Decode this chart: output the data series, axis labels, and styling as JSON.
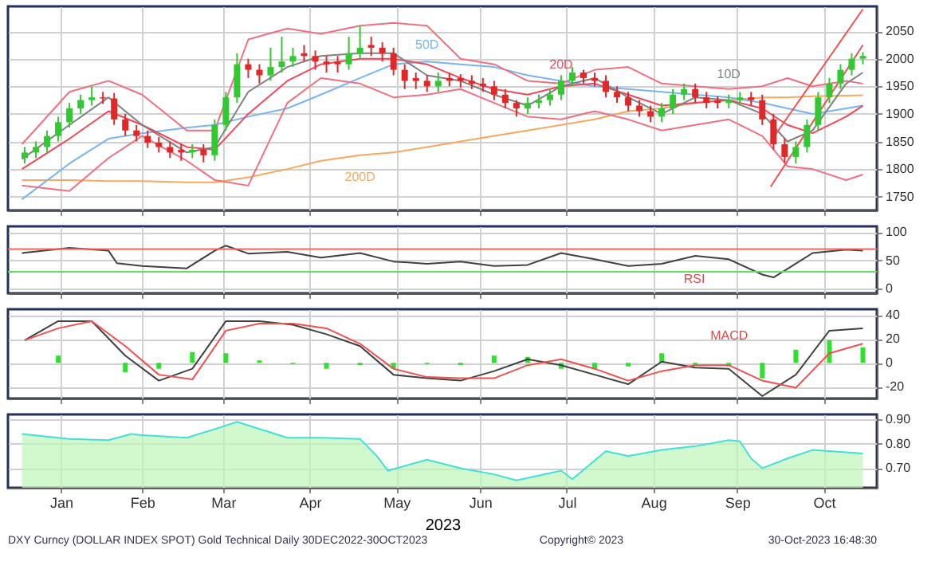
{
  "chart_data": [
    {
      "type": "candlestick",
      "grid": true,
      "tick_labels": "y",
      "xlim": [
        "2022-12-28",
        "2023-11-04"
      ],
      "ylim": [
        1725,
        2095
      ],
      "yticks": [
        1750,
        1800,
        1850,
        1900,
        1950,
        2000,
        2050
      ],
      "xticks": [
        {
          "value": "2023-01-16",
          "label": null
        },
        {
          "value": "2023-02-14",
          "label": null
        },
        {
          "value": "2023-03-15",
          "label": null
        },
        {
          "value": "2023-04-15",
          "label": null
        },
        {
          "value": "2023-05-16",
          "label": null
        },
        {
          "value": "2023-06-15",
          "label": null
        },
        {
          "value": "2023-07-16",
          "label": null
        },
        {
          "value": "2023-08-16",
          "label": null
        },
        {
          "value": "2023-09-15",
          "label": null
        },
        {
          "value": "2023-10-16",
          "label": null
        }
      ],
      "x": [
        "2023-01-03",
        "2023-01-07",
        "2023-01-11",
        "2023-01-15",
        "2023-01-19",
        "2023-01-23",
        "2023-01-27",
        "2023-01-31",
        "2023-02-04",
        "2023-02-08",
        "2023-02-12",
        "2023-02-16",
        "2023-02-20",
        "2023-02-24",
        "2023-02-28",
        "2023-03-04",
        "2023-03-08",
        "2023-03-12",
        "2023-03-16",
        "2023-03-20",
        "2023-03-24",
        "2023-03-28",
        "2023-04-01",
        "2023-04-05",
        "2023-04-09",
        "2023-04-13",
        "2023-04-17",
        "2023-04-21",
        "2023-04-25",
        "2023-04-29",
        "2023-05-03",
        "2023-05-07",
        "2023-05-11",
        "2023-05-15",
        "2023-05-19",
        "2023-05-23",
        "2023-05-27",
        "2023-05-31",
        "2023-06-04",
        "2023-06-08",
        "2023-06-12",
        "2023-06-16",
        "2023-06-20",
        "2023-06-24",
        "2023-06-28",
        "2023-07-02",
        "2023-07-06",
        "2023-07-10",
        "2023-07-14",
        "2023-07-18",
        "2023-07-22",
        "2023-07-26",
        "2023-07-30",
        "2023-08-03",
        "2023-08-07",
        "2023-08-11",
        "2023-08-15",
        "2023-08-19",
        "2023-08-23",
        "2023-08-27",
        "2023-08-31",
        "2023-09-04",
        "2023-09-08",
        "2023-09-12",
        "2023-09-16",
        "2023-09-20",
        "2023-09-24",
        "2023-09-28",
        "2023-10-02",
        "2023-10-06",
        "2023-10-10",
        "2023-10-14",
        "2023-10-18",
        "2023-10-22",
        "2023-10-26",
        "2023-10-30"
      ],
      "ohlc": [
        [
          1820,
          1840,
          1810,
          1830
        ],
        [
          1830,
          1850,
          1820,
          1840
        ],
        [
          1840,
          1870,
          1830,
          1860
        ],
        [
          1860,
          1895,
          1850,
          1885
        ],
        [
          1885,
          1920,
          1875,
          1910
        ],
        [
          1910,
          1935,
          1900,
          1925
        ],
        [
          1925,
          1950,
          1915,
          1930
        ],
        [
          1930,
          1940,
          1918,
          1928
        ],
        [
          1928,
          1938,
          1880,
          1890
        ],
        [
          1890,
          1900,
          1860,
          1870
        ],
        [
          1870,
          1880,
          1850,
          1860
        ],
        [
          1860,
          1870,
          1838,
          1848
        ],
        [
          1848,
          1858,
          1830,
          1840
        ],
        [
          1840,
          1850,
          1820,
          1830
        ],
        [
          1835,
          1845,
          1815,
          1830
        ],
        [
          1830,
          1845,
          1820,
          1835
        ],
        [
          1835,
          1845,
          1812,
          1825
        ],
        [
          1825,
          1890,
          1815,
          1880
        ],
        [
          1880,
          1940,
          1870,
          1930
        ],
        [
          1930,
          2010,
          1920,
          1990
        ],
        [
          1990,
          2000,
          1965,
          1980
        ],
        [
          1980,
          1990,
          1955,
          1970
        ],
        [
          1970,
          2020,
          1960,
          1985
        ],
        [
          1985,
          2040,
          1975,
          1995
        ],
        [
          1995,
          2020,
          1985,
          2005
        ],
        [
          2010,
          2025,
          1995,
          2005
        ],
        [
          2005,
          2015,
          1980,
          1995
        ],
        [
          1995,
          2005,
          1975,
          1990
        ],
        [
          1995,
          2005,
          1975,
          1990
        ],
        [
          1990,
          2040,
          1980,
          2010
        ],
        [
          2010,
          2060,
          2000,
          2020
        ],
        [
          2025,
          2040,
          2005,
          2020
        ],
        [
          2020,
          2030,
          1995,
          2010
        ],
        [
          2010,
          2020,
          1970,
          1980
        ],
        [
          1980,
          1990,
          1945,
          1960
        ],
        [
          1965,
          1975,
          1945,
          1960
        ],
        [
          1960,
          1970,
          1940,
          1950
        ],
        [
          1950,
          1975,
          1940,
          1960
        ],
        [
          1965,
          1975,
          1950,
          1960
        ],
        [
          1965,
          1972,
          1948,
          1960
        ],
        [
          1960,
          1970,
          1945,
          1955
        ],
        [
          1955,
          1965,
          1940,
          1950
        ],
        [
          1950,
          1960,
          1925,
          1935
        ],
        [
          1935,
          1945,
          1910,
          1920
        ],
        [
          1920,
          1925,
          1895,
          1910
        ],
        [
          1910,
          1930,
          1900,
          1920
        ],
        [
          1920,
          1935,
          1910,
          1925
        ],
        [
          1925,
          1945,
          1915,
          1935
        ],
        [
          1935,
          1970,
          1925,
          1960
        ],
        [
          1960,
          1985,
          1950,
          1975
        ],
        [
          1975,
          1980,
          1955,
          1965
        ],
        [
          1965,
          1975,
          1950,
          1960
        ],
        [
          1960,
          1970,
          1930,
          1940
        ],
        [
          1940,
          1950,
          1920,
          1930
        ],
        [
          1930,
          1940,
          1905,
          1915
        ],
        [
          1915,
          1925,
          1895,
          1905
        ],
        [
          1905,
          1915,
          1885,
          1895
        ],
        [
          1895,
          1920,
          1885,
          1910
        ],
        [
          1910,
          1945,
          1900,
          1935
        ],
        [
          1935,
          1955,
          1925,
          1945
        ],
        [
          1945,
          1955,
          1920,
          1930
        ],
        [
          1930,
          1940,
          1910,
          1920
        ],
        [
          1925,
          1932,
          1910,
          1920
        ],
        [
          1920,
          1935,
          1910,
          1925
        ],
        [
          1925,
          1940,
          1915,
          1930
        ],
        [
          1930,
          1940,
          1915,
          1925
        ],
        [
          1925,
          1935,
          1880,
          1890
        ],
        [
          1890,
          1900,
          1835,
          1845
        ],
        [
          1845,
          1855,
          1812,
          1822
        ],
        [
          1822,
          1850,
          1810,
          1840
        ],
        [
          1840,
          1890,
          1830,
          1880
        ],
        [
          1880,
          1940,
          1870,
          1930
        ],
        [
          1930,
          1965,
          1920,
          1955
        ],
        [
          1955,
          1990,
          1945,
          1980
        ],
        [
          1980,
          2010,
          1970,
          2000
        ],
        [
          2000,
          2012,
          1990,
          2005
        ]
      ],
      "series": [
        {
          "type": "line",
          "name": "200D",
          "color": "#f5a860",
          "x": [
            "2023-01-02",
            "2023-01-19",
            "2023-02-02",
            "2023-02-14",
            "2023-03-02",
            "2023-03-12",
            "2023-03-24",
            "2023-04-07",
            "2023-04-19",
            "2023-05-03",
            "2023-05-15",
            "2023-05-27",
            "2023-06-08",
            "2023-06-20",
            "2023-07-02",
            "2023-07-14",
            "2023-07-26",
            "2023-08-07",
            "2023-08-19",
            "2023-08-31",
            "2023-09-12",
            "2023-09-24",
            "2023-10-03",
            "2023-10-12",
            "2023-10-24",
            "2023-10-30"
          ],
          "values": [
            1780,
            1780,
            1778,
            1778,
            1776,
            1776,
            1785,
            1800,
            1815,
            1825,
            1830,
            1840,
            1850,
            1860,
            1870,
            1880,
            1890,
            1905,
            1910,
            1920,
            1925,
            1930,
            1930,
            1932,
            1933,
            1934
          ]
        },
        {
          "type": "line",
          "name": "50D",
          "color": "#78b4f0",
          "x": [
            "2023-01-02",
            "2023-01-19",
            "2023-02-02",
            "2023-02-14",
            "2023-03-02",
            "2023-03-12",
            "2023-03-24",
            "2023-04-07",
            "2023-04-19",
            "2023-05-03",
            "2023-05-15",
            "2023-05-27",
            "2023-06-08",
            "2023-06-20",
            "2023-07-02",
            "2023-07-14",
            "2023-07-26",
            "2023-08-07",
            "2023-08-19",
            "2023-08-31",
            "2023-09-12",
            "2023-09-24",
            "2023-10-03",
            "2023-10-12",
            "2023-10-24",
            "2023-10-30"
          ],
          "values": [
            1745,
            1810,
            1855,
            1865,
            1875,
            1880,
            1895,
            1910,
            1935,
            1965,
            1990,
            1995,
            1990,
            1985,
            1970,
            1960,
            1950,
            1945,
            1940,
            1935,
            1930,
            1920,
            1910,
            1900,
            1910,
            1915
          ]
        },
        {
          "type": "line",
          "color": "#f07080",
          "x": [
            "2023-01-02",
            "2023-01-19",
            "2023-02-02",
            "2023-02-14",
            "2023-03-02",
            "2023-03-12",
            "2023-03-24",
            "2023-04-07",
            "2023-04-19",
            "2023-05-03",
            "2023-05-15",
            "2023-05-27",
            "2023-06-08",
            "2023-06-20",
            "2023-07-02",
            "2023-07-14",
            "2023-07-26",
            "2023-08-07",
            "2023-08-19",
            "2023-08-31",
            "2023-09-12",
            "2023-09-24",
            "2023-10-03",
            "2023-10-12",
            "2023-10-24",
            "2023-10-30"
          ],
          "values": [
            1845,
            1940,
            1960,
            1935,
            1870,
            1870,
            2035,
            2055,
            2045,
            2060,
            2065,
            2060,
            2000,
            1990,
            1960,
            1955,
            1980,
            1985,
            1955,
            1950,
            1945,
            1950,
            1965,
            1950,
            1960,
            1955
          ]
        },
        {
          "type": "line",
          "color": "#f07080",
          "x": [
            "2023-01-02",
            "2023-01-19",
            "2023-02-02",
            "2023-02-14",
            "2023-03-02",
            "2023-03-12",
            "2023-03-24",
            "2023-04-07",
            "2023-04-19",
            "2023-05-03",
            "2023-05-15",
            "2023-05-27",
            "2023-06-08",
            "2023-06-20",
            "2023-07-02",
            "2023-07-14",
            "2023-07-26",
            "2023-08-07",
            "2023-08-19",
            "2023-08-31",
            "2023-09-12",
            "2023-09-24",
            "2023-10-03",
            "2023-10-12",
            "2023-10-24",
            "2023-10-30"
          ],
          "values": [
            1770,
            1760,
            1820,
            1860,
            1815,
            1780,
            1770,
            1920,
            1965,
            1955,
            1930,
            1935,
            1945,
            1920,
            1895,
            1890,
            1905,
            1890,
            1870,
            1880,
            1890,
            1860,
            1805,
            1800,
            1780,
            1790
          ]
        },
        {
          "type": "line",
          "name": "20D",
          "color": "#f04858",
          "x": [
            "2023-01-02",
            "2023-01-19",
            "2023-02-02",
            "2023-02-14",
            "2023-03-02",
            "2023-03-12",
            "2023-03-24",
            "2023-04-07",
            "2023-04-19",
            "2023-05-03",
            "2023-05-15",
            "2023-05-27",
            "2023-06-08",
            "2023-06-20",
            "2023-07-02",
            "2023-07-14",
            "2023-07-26",
            "2023-08-07",
            "2023-08-19",
            "2023-08-31",
            "2023-09-12",
            "2023-09-24",
            "2023-10-03",
            "2023-10-12",
            "2023-10-24",
            "2023-10-30"
          ],
          "values": [
            1800,
            1855,
            1905,
            1880,
            1840,
            1835,
            1900,
            1960,
            1990,
            2000,
            2000,
            1990,
            1965,
            1945,
            1935,
            1950,
            1955,
            1935,
            1915,
            1920,
            1925,
            1910,
            1880,
            1865,
            1895,
            1915
          ]
        },
        {
          "type": "line",
          "name": "10D",
          "color": "#808080",
          "x": [
            "2023-01-02",
            "2023-01-19",
            "2023-02-02",
            "2023-02-14",
            "2023-03-02",
            "2023-03-12",
            "2023-03-24",
            "2023-04-07",
            "2023-04-19",
            "2023-05-03",
            "2023-05-15",
            "2023-05-27",
            "2023-06-08",
            "2023-06-20",
            "2023-07-02",
            "2023-07-14",
            "2023-07-26",
            "2023-08-07",
            "2023-08-19",
            "2023-08-31",
            "2023-09-12",
            "2023-09-24",
            "2023-10-03",
            "2023-10-12",
            "2023-10-24",
            "2023-10-30"
          ],
          "values": [
            1818,
            1880,
            1930,
            1880,
            1830,
            1840,
            1940,
            1985,
            2005,
            2010,
            2010,
            1970,
            1960,
            1935,
            1915,
            1950,
            1965,
            1930,
            1900,
            1930,
            1925,
            1900,
            1850,
            1870,
            1955,
            1975
          ]
        },
        {
          "type": "line",
          "color": "#f05050",
          "x": [
            "2023-09-27",
            "2023-10-30"
          ],
          "values": [
            1850,
            2090
          ]
        },
        {
          "type": "line",
          "color": "#f05050",
          "x": [
            "2023-09-27",
            "2023-10-30"
          ],
          "values": [
            1768,
            2025
          ]
        }
      ],
      "line_style": "solid"
    },
    {
      "type": "line",
      "grid": true,
      "tick_labels": "y",
      "xlim": [
        "2022-12-28",
        "2023-11-04"
      ],
      "ylim": [
        -8,
        110
      ],
      "yticks": [
        0,
        50,
        100
      ],
      "xticks": [
        {
          "value": "2023-01-16",
          "label": null
        },
        {
          "value": "2023-02-14",
          "label": null
        },
        {
          "value": "2023-03-15",
          "label": null
        },
        {
          "value": "2023-04-15",
          "label": null
        },
        {
          "value": "2023-05-16",
          "label": null
        },
        {
          "value": "2023-06-15",
          "label": null
        },
        {
          "value": "2023-07-16",
          "label": null
        },
        {
          "value": "2023-08-16",
          "label": null
        },
        {
          "value": "2023-09-15",
          "label": null
        },
        {
          "value": "2023-10-16",
          "label": null
        }
      ],
      "x": [
        "2023-01-02",
        "2023-01-19",
        "2023-02-02",
        "2023-02-05",
        "2023-02-14",
        "2023-03-02",
        "2023-03-12",
        "2023-03-16",
        "2023-03-24",
        "2023-04-07",
        "2023-04-19",
        "2023-05-03",
        "2023-05-15",
        "2023-05-27",
        "2023-06-08",
        "2023-06-20",
        "2023-07-02",
        "2023-07-14",
        "2023-07-26",
        "2023-08-07",
        "2023-08-19",
        "2023-08-31",
        "2023-09-12",
        "2023-09-24",
        "2023-09-28",
        "2023-10-03",
        "2023-10-12",
        "2023-10-24",
        "2023-10-30"
      ],
      "series": [
        {
          "color": "#404040",
          "values": [
            63,
            72,
            67,
            45,
            40,
            36,
            67,
            76,
            62,
            65,
            55,
            63,
            48,
            44,
            48,
            40,
            42,
            63,
            52,
            40,
            44,
            58,
            52,
            25,
            20,
            35,
            63,
            69,
            67
          ]
        }
      ],
      "ref_lines": [
        {
          "axis": "y",
          "value": 70,
          "color": "#ff6060"
        },
        {
          "axis": "y",
          "value": 30,
          "color": "#60e060"
        }
      ],
      "annotations": [
        "RSI"
      ]
    },
    {
      "type": "line",
      "grid": true,
      "tick_labels": "y",
      "xlim": [
        "2022-12-28",
        "2023-11-04"
      ],
      "ylim": [
        -30,
        45
      ],
      "yticks": [
        -20,
        0,
        20,
        40
      ],
      "xticks": [
        {
          "value": "2023-01-16",
          "label": null
        },
        {
          "value": "2023-02-14",
          "label": null
        },
        {
          "value": "2023-03-15",
          "label": null
        },
        {
          "value": "2023-04-15",
          "label": null
        },
        {
          "value": "2023-05-16",
          "label": null
        },
        {
          "value": "2023-06-15",
          "label": null
        },
        {
          "value": "2023-07-16",
          "label": null
        },
        {
          "value": "2023-08-16",
          "label": null
        },
        {
          "value": "2023-09-15",
          "label": null
        },
        {
          "value": "2023-10-16",
          "label": null
        }
      ],
      "x": [
        "2023-01-03",
        "2023-01-15",
        "2023-01-27",
        "2023-02-08",
        "2023-02-20",
        "2023-03-04",
        "2023-03-16",
        "2023-03-28",
        "2023-04-09",
        "2023-04-21",
        "2023-05-03",
        "2023-05-15",
        "2023-05-27",
        "2023-06-08",
        "2023-06-20",
        "2023-07-02",
        "2023-07-14",
        "2023-07-26",
        "2023-08-07",
        "2023-08-19",
        "2023-08-31",
        "2023-09-12",
        "2023-09-24",
        "2023-10-06",
        "2023-10-18",
        "2023-10-30"
      ],
      "series": [
        {
          "type": "bar",
          "color": "#30e030",
          "values": [
            0,
            6,
            0,
            -8,
            -5,
            9,
            8,
            2,
            -1,
            -5,
            -2,
            -5,
            -1,
            -2,
            6,
            5,
            -5,
            -5,
            -3,
            8,
            -2,
            -3,
            -13,
            11,
            19,
            13
          ]
        },
        {
          "type": "line",
          "color": "#404040",
          "values": [
            19,
            35,
            35,
            6,
            -15,
            -5,
            35,
            35,
            32,
            24,
            14,
            -10,
            -13,
            -15,
            -7,
            3,
            -2,
            -10,
            -18,
            1,
            -4,
            -5,
            -28,
            -10,
            27,
            29
          ]
        },
        {
          "type": "line",
          "color": "#f05050",
          "values": [
            19,
            29,
            35,
            14,
            -10,
            -14,
            27,
            33,
            33,
            29,
            16,
            -5,
            -12,
            -13,
            -13,
            -2,
            3,
            -5,
            -15,
            -7,
            -2,
            -2,
            -15,
            -21,
            8,
            16
          ]
        }
      ],
      "annotations": [
        "MACD"
      ]
    },
    {
      "type": "area",
      "grid": true,
      "xlim": [
        "2022-12-28",
        "2023-11-04"
      ],
      "ylim": [
        0.62,
        0.92
      ],
      "yticks": [
        {
          "value": 0.7,
          "label": "0.70"
        },
        {
          "value": 0.8,
          "label": "0.80"
        },
        {
          "value": 0.9,
          "label": "0.90"
        }
      ],
      "xlabel": "2023",
      "xticks": [
        {
          "value": "2023-01-16",
          "label": "Jan"
        },
        {
          "value": "2023-02-14",
          "label": "Feb"
        },
        {
          "value": "2023-03-15",
          "label": "Mar"
        },
        {
          "value": "2023-04-15",
          "label": "Apr"
        },
        {
          "value": "2023-05-16",
          "label": "May"
        },
        {
          "value": "2023-06-15",
          "label": "Jun"
        },
        {
          "value": "2023-07-16",
          "label": "Jul"
        },
        {
          "value": "2023-08-16",
          "label": "Aug"
        },
        {
          "value": "2023-09-15",
          "label": "Sep"
        },
        {
          "value": "2023-10-16",
          "label": "Oct"
        }
      ],
      "x": [
        "2023-01-02",
        "2023-01-19",
        "2023-02-02",
        "2023-02-10",
        "2023-02-14",
        "2023-03-02",
        "2023-03-12",
        "2023-03-20",
        "2023-03-24",
        "2023-04-07",
        "2023-04-19",
        "2023-05-03",
        "2023-05-09",
        "2023-05-13",
        "2023-05-27",
        "2023-06-08",
        "2023-06-20",
        "2023-06-28",
        "2023-07-14",
        "2023-07-18",
        "2023-07-30",
        "2023-08-07",
        "2023-08-19",
        "2023-08-31",
        "2023-09-12",
        "2023-09-16",
        "2023-09-20",
        "2023-09-24",
        "2023-10-03",
        "2023-10-12",
        "2023-10-24",
        "2023-10-30"
      ],
      "series": [
        {
          "color": "#bdf7b8",
          "values": [
            0.84,
            0.82,
            0.815,
            0.84,
            0.835,
            0.825,
            0.86,
            0.89,
            0.875,
            0.825,
            0.825,
            0.82,
            0.75,
            0.69,
            0.735,
            0.7,
            0.675,
            0.65,
            0.69,
            0.655,
            0.77,
            0.75,
            0.775,
            0.79,
            0.815,
            0.81,
            0.74,
            0.7,
            0.74,
            0.775,
            0.765,
            0.76
          ]
        }
      ],
      "annotations": [
        "DXY Curncy (DOLLAR INDEX SPOT) Gold Technical  Daily 30DEC2022-30OCT2023",
        "Copyright© 2023",
        "30-Oct-2023 16:48:30"
      ]
    }
  ]
}
